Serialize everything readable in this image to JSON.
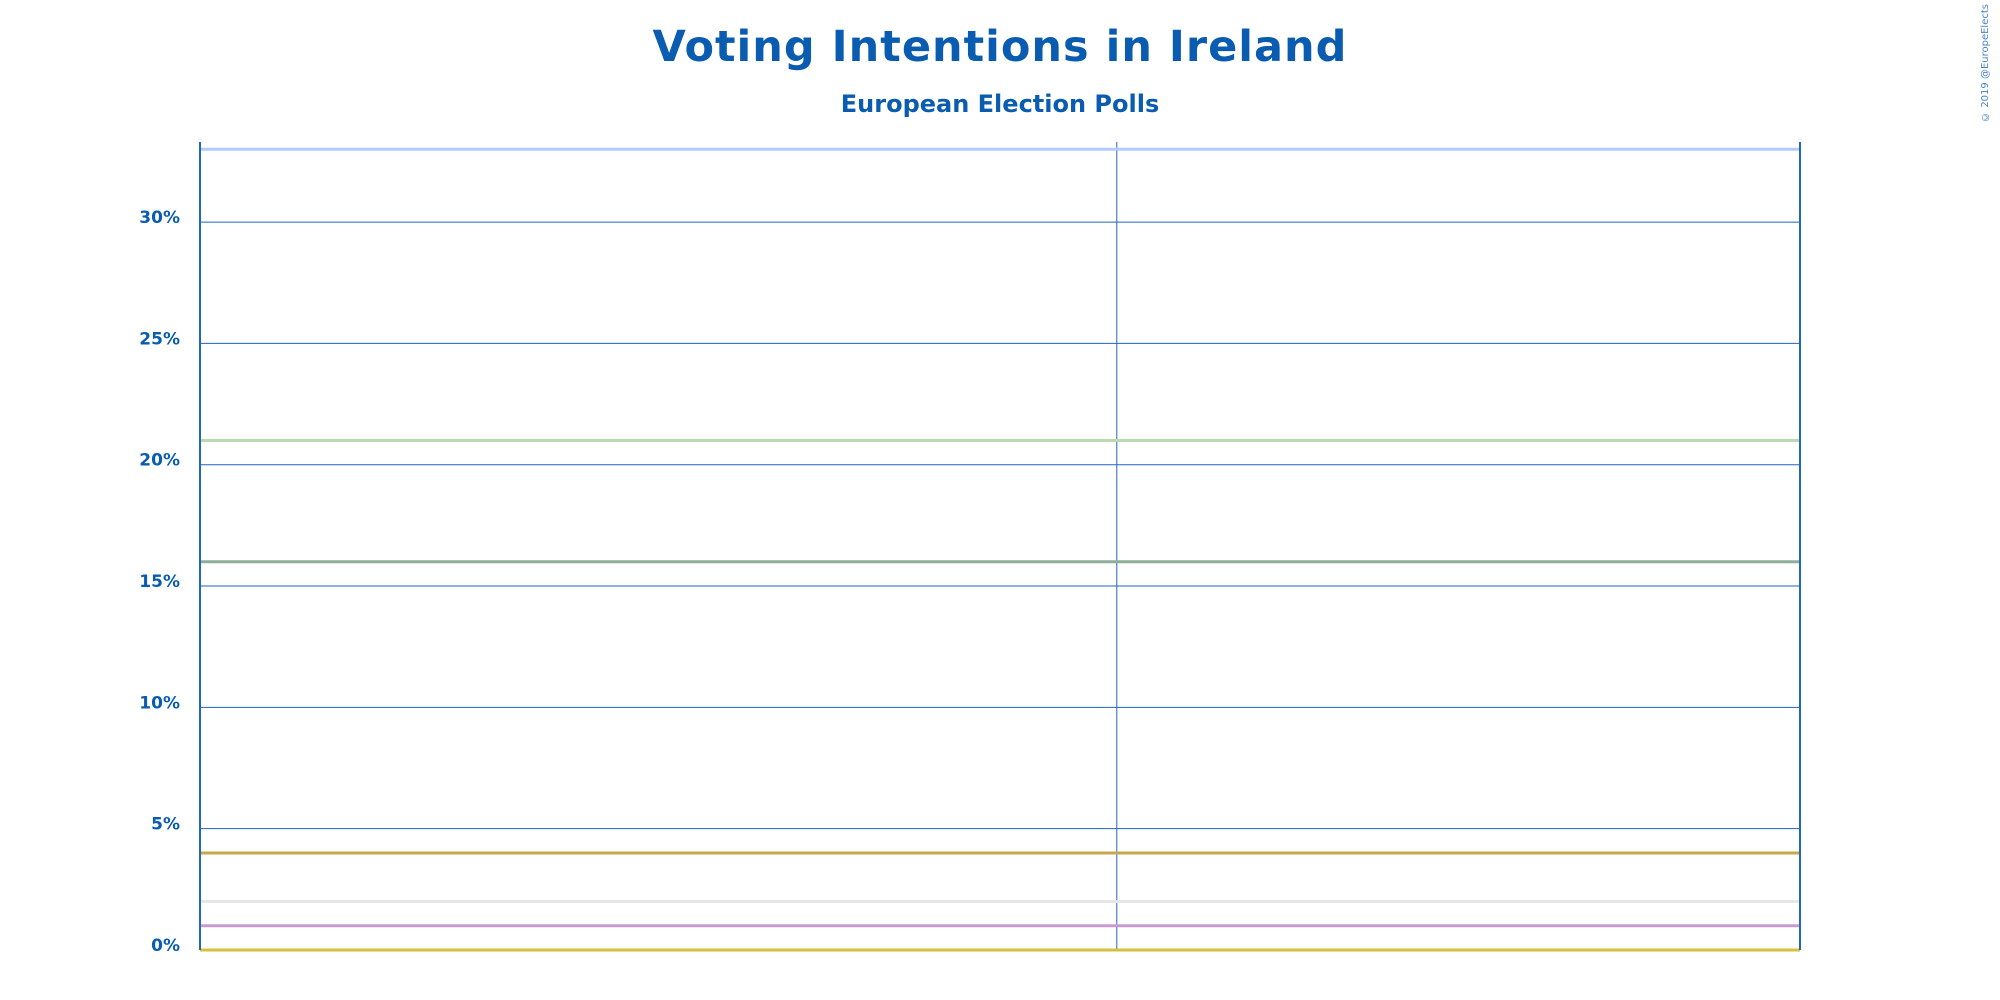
{
  "colors": {
    "brand": "#0a5cb0",
    "grid": "#1f66bf",
    "background": "#ffffff"
  },
  "credit": "© 2019 @EuropeElects",
  "chart_data": {
    "type": "line",
    "title": "Voting Intentions in Ireland",
    "subtitle": "European Election Polls",
    "xlabel": "",
    "ylabel": "",
    "ylim": [
      0,
      33.3
    ],
    "yticks": [
      0,
      5,
      10,
      15,
      20,
      25,
      30
    ],
    "ytick_labels": [
      "0%",
      "5%",
      "10%",
      "15%",
      "20%",
      "25%",
      "30%"
    ],
    "x_range": [
      0,
      1
    ],
    "x_gridlines": [
      0.573
    ],
    "grid": true,
    "series": [
      {
        "values": [
          33,
          33
        ],
        "color": "#b3ccff"
      },
      {
        "values": [
          21,
          21
        ],
        "color": "#b8dcb0"
      },
      {
        "values": [
          16,
          16
        ],
        "color": "#8fae9a"
      },
      {
        "values": [
          4,
          4
        ],
        "color": "#c4a84a"
      },
      {
        "values": [
          2,
          2
        ],
        "color": "#e6e6e6"
      },
      {
        "values": [
          1,
          1
        ],
        "color": "#c89bd0"
      },
      {
        "values": [
          0,
          0
        ],
        "color": "#d2c23c"
      }
    ]
  }
}
